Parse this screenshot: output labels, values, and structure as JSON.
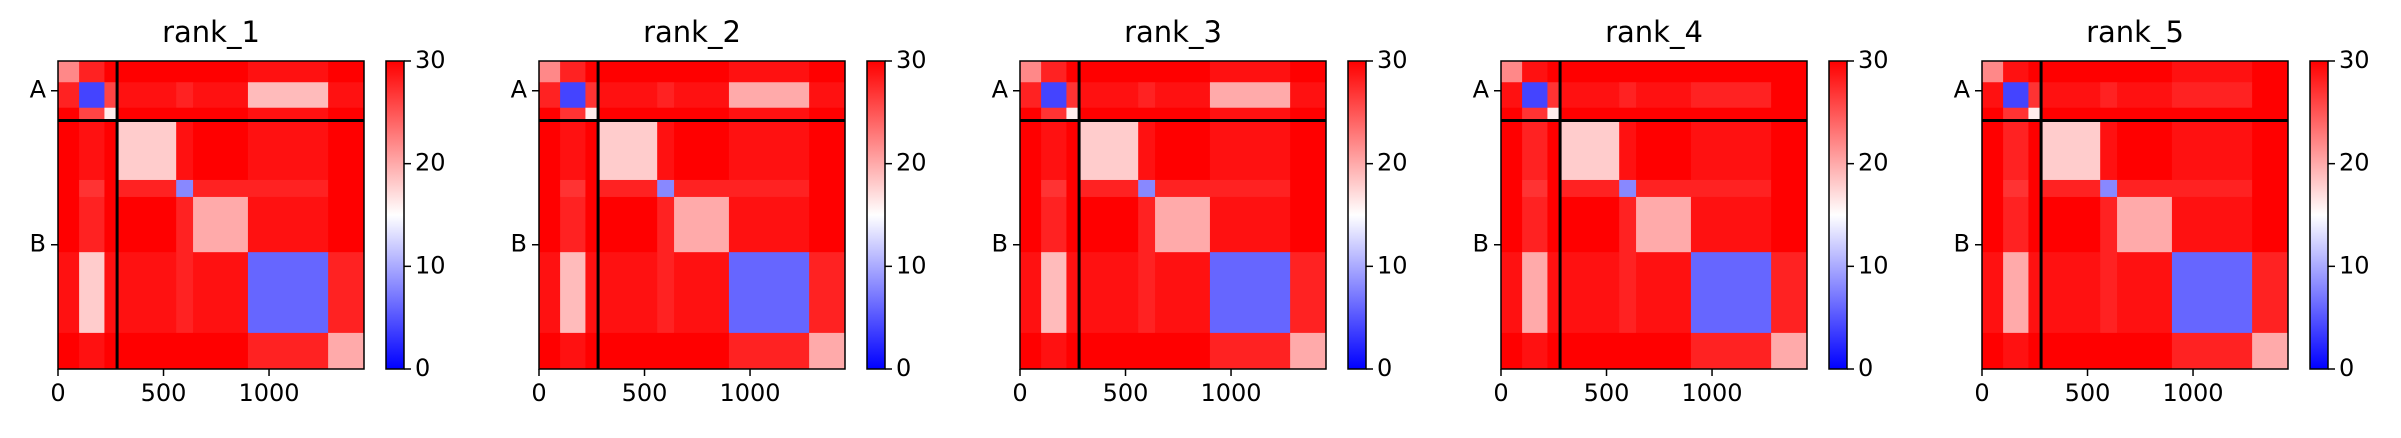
{
  "chart_data": [
    {
      "type": "heatmap",
      "title": "rank_1",
      "bins": [
        0,
        100,
        220,
        280,
        560,
        640,
        900,
        1280,
        1450
      ],
      "xlim": [
        0,
        1450
      ],
      "ylim": [
        0,
        1450
      ],
      "xticks": [
        0,
        500,
        1000
      ],
      "yticks": [
        {
          "value": 140,
          "label": "A"
        },
        {
          "value": 865,
          "label": "B"
        }
      ],
      "chain_breaks": [
        280
      ],
      "clim": [
        0,
        30
      ],
      "cticks": [
        0,
        10,
        20,
        30
      ],
      "values": [
        [
          22,
          28,
          30,
          30,
          30,
          30,
          29,
          30
        ],
        [
          28,
          4,
          26,
          29,
          28,
          29,
          19,
          29
        ],
        [
          30,
          26,
          16,
          30,
          30,
          30,
          29,
          30
        ],
        [
          30,
          29,
          30,
          18,
          29,
          30,
          29,
          30
        ],
        [
          30,
          27,
          30,
          28,
          8,
          28,
          28,
          30
        ],
        [
          30,
          28,
          30,
          30,
          28,
          20,
          29,
          30
        ],
        [
          29,
          18,
          29,
          29,
          28,
          29,
          6,
          28
        ],
        [
          30,
          29,
          30,
          30,
          30,
          30,
          28,
          20
        ]
      ]
    },
    {
      "type": "heatmap",
      "title": "rank_2",
      "bins": [
        0,
        100,
        220,
        280,
        560,
        640,
        900,
        1280,
        1450
      ],
      "xlim": [
        0,
        1450
      ],
      "ylim": [
        0,
        1450
      ],
      "xticks": [
        0,
        500,
        1000
      ],
      "yticks": [
        {
          "value": 140,
          "label": "A"
        },
        {
          "value": 865,
          "label": "B"
        }
      ],
      "chain_breaks": [
        280
      ],
      "clim": [
        0,
        30
      ],
      "cticks": [
        0,
        10,
        20,
        30
      ],
      "values": [
        [
          22,
          28,
          30,
          30,
          30,
          30,
          29,
          30
        ],
        [
          28,
          4,
          27,
          29,
          28,
          29,
          20,
          29
        ],
        [
          30,
          27,
          16,
          30,
          30,
          30,
          29,
          30
        ],
        [
          30,
          29,
          30,
          18,
          29,
          30,
          29,
          30
        ],
        [
          30,
          27,
          30,
          28,
          8,
          28,
          28,
          30
        ],
        [
          30,
          28,
          30,
          30,
          28,
          20,
          29,
          30
        ],
        [
          29,
          19,
          29,
          29,
          28,
          29,
          6,
          28
        ],
        [
          30,
          29,
          30,
          30,
          30,
          30,
          28,
          20
        ]
      ]
    },
    {
      "type": "heatmap",
      "title": "rank_3",
      "bins": [
        0,
        100,
        220,
        280,
        560,
        640,
        900,
        1280,
        1450
      ],
      "xlim": [
        0,
        1450
      ],
      "ylim": [
        0,
        1450
      ],
      "xticks": [
        0,
        500,
        1000
      ],
      "yticks": [
        {
          "value": 140,
          "label": "A"
        },
        {
          "value": 865,
          "label": "B"
        }
      ],
      "chain_breaks": [
        280
      ],
      "clim": [
        0,
        30
      ],
      "cticks": [
        0,
        10,
        20,
        30
      ],
      "values": [
        [
          22,
          28,
          30,
          30,
          30,
          30,
          29,
          30
        ],
        [
          28,
          4,
          27,
          29,
          28,
          29,
          20,
          29
        ],
        [
          30,
          27,
          16,
          30,
          30,
          30,
          29,
          30
        ],
        [
          30,
          29,
          30,
          18,
          29,
          30,
          29,
          30
        ],
        [
          30,
          27,
          30,
          28,
          8,
          28,
          28,
          30
        ],
        [
          30,
          28,
          30,
          30,
          28,
          20,
          29,
          30
        ],
        [
          29,
          19,
          29,
          29,
          28,
          29,
          6,
          28
        ],
        [
          30,
          29,
          30,
          30,
          30,
          30,
          28,
          20
        ]
      ]
    },
    {
      "type": "heatmap",
      "title": "rank_4",
      "bins": [
        0,
        100,
        220,
        280,
        560,
        640,
        900,
        1280,
        1450
      ],
      "xlim": [
        0,
        1450
      ],
      "ylim": [
        0,
        1450
      ],
      "xticks": [
        0,
        500,
        1000
      ],
      "yticks": [
        {
          "value": 140,
          "label": "A"
        },
        {
          "value": 865,
          "label": "B"
        }
      ],
      "chain_breaks": [
        280
      ],
      "clim": [
        0,
        30
      ],
      "cticks": [
        0,
        10,
        20,
        30
      ],
      "values": [
        [
          22,
          29,
          30,
          30,
          30,
          30,
          30,
          30
        ],
        [
          29,
          4,
          27,
          29,
          28,
          29,
          28,
          30
        ],
        [
          30,
          27,
          16,
          30,
          30,
          30,
          30,
          30
        ],
        [
          30,
          28,
          30,
          18,
          29,
          30,
          29,
          30
        ],
        [
          30,
          27,
          30,
          28,
          8,
          28,
          28,
          30
        ],
        [
          30,
          28,
          30,
          30,
          28,
          20,
          29,
          30
        ],
        [
          29,
          20,
          29,
          29,
          28,
          29,
          6,
          28
        ],
        [
          30,
          29,
          30,
          30,
          30,
          30,
          28,
          20
        ]
      ]
    },
    {
      "type": "heatmap",
      "title": "rank_5",
      "bins": [
        0,
        100,
        220,
        280,
        560,
        640,
        900,
        1280,
        1450
      ],
      "xlim": [
        0,
        1450
      ],
      "ylim": [
        0,
        1450
      ],
      "xticks": [
        0,
        500,
        1000
      ],
      "yticks": [
        {
          "value": 140,
          "label": "A"
        },
        {
          "value": 865,
          "label": "B"
        }
      ],
      "chain_breaks": [
        280
      ],
      "clim": [
        0,
        30
      ],
      "cticks": [
        0,
        10,
        20,
        30
      ],
      "values": [
        [
          22,
          29,
          30,
          30,
          30,
          30,
          29,
          30
        ],
        [
          29,
          4,
          27,
          29,
          28,
          29,
          28,
          30
        ],
        [
          30,
          27,
          16,
          30,
          30,
          30,
          30,
          30
        ],
        [
          30,
          28,
          30,
          18,
          29,
          30,
          29,
          30
        ],
        [
          30,
          27,
          30,
          28,
          8,
          28,
          28,
          30
        ],
        [
          30,
          28,
          30,
          30,
          28,
          20,
          29,
          30
        ],
        [
          29,
          20,
          29,
          29,
          28,
          29,
          6,
          28
        ],
        [
          30,
          29,
          30,
          30,
          30,
          30,
          28,
          20
        ]
      ]
    }
  ]
}
